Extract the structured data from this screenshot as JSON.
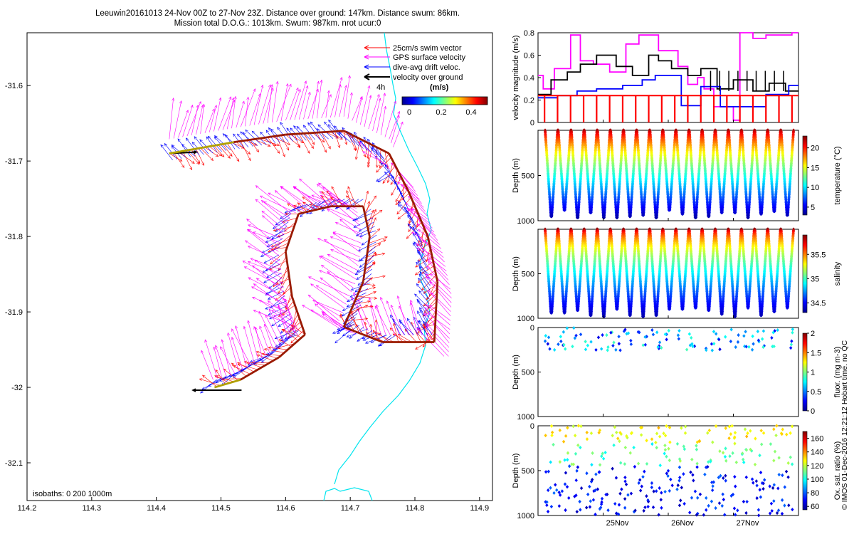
{
  "title": {
    "line1": "Leeuwin20161013 24-Nov 00Z to 27-Nov 23Z. Distance over ground: 147km. Distance swum: 86km.",
    "line2": "Mission total D.O.G.: 1013km. Swum: 987km. nrot ucur:0"
  },
  "side_note": "© IMOS 01-Dec-2016 12:21:12 Hobart time. no QC",
  "colors": {
    "swim": "#ff0000",
    "gps": "#ff00ff",
    "drift": "#0000ff",
    "vog": "#000000",
    "coast": "#00e5ee"
  },
  "chart_data": [
    {
      "type": "vector-map",
      "xlim": [
        114.2,
        114.92
      ],
      "ylim": [
        -32.15,
        -31.53
      ],
      "xticks": [
        "114.2",
        "114.3",
        "114.4",
        "114.5",
        "114.6",
        "114.7",
        "114.8",
        "114.9"
      ],
      "yticks": [
        "-31.6",
        "-31.7",
        "-31.8",
        "-31.9",
        "-32",
        "-32.1"
      ],
      "legend": [
        "25cm/s swim vector",
        "GPS surface velocity",
        "dive-avg drift veloc.",
        "velocity over ground"
      ],
      "legend_extra": "4h",
      "colorbar": {
        "label": "(m/s)",
        "ticks": [
          "0",
          "0.2",
          "0.4"
        ],
        "range": [
          0,
          0.5
        ]
      },
      "isobaths_label": "isobaths: 0   200   1000m",
      "track": [
        [
          114.42,
          -31.69
        ],
        [
          114.52,
          -31.675
        ],
        [
          114.6,
          -31.665
        ],
        [
          114.69,
          -31.66
        ],
        [
          114.76,
          -31.69
        ],
        [
          114.79,
          -31.74
        ],
        [
          114.82,
          -31.8
        ],
        [
          114.835,
          -31.86
        ],
        [
          114.83,
          -31.94
        ],
        [
          114.75,
          -31.94
        ],
        [
          114.69,
          -31.92
        ],
        [
          114.72,
          -31.86
        ],
        [
          114.73,
          -31.8
        ],
        [
          114.72,
          -31.76
        ],
        [
          114.67,
          -31.76
        ],
        [
          114.62,
          -31.77
        ],
        [
          114.6,
          -31.82
        ],
        [
          114.61,
          -31.88
        ],
        [
          114.63,
          -31.93
        ],
        [
          114.59,
          -31.96
        ],
        [
          114.53,
          -31.99
        ],
        [
          114.49,
          -32.0
        ]
      ]
    },
    {
      "type": "line",
      "ylabel": "velocity magnitude (m/s)",
      "ylim": [
        0,
        0.8
      ],
      "yticks": [
        "0",
        "0.2",
        "0.4",
        "0.6",
        "0.8"
      ],
      "x_range_days": [
        24,
        28
      ],
      "series": [
        {
          "color": "#ff00ff",
          "x": [
            24,
            24.08,
            24.08,
            24.25,
            24.25,
            24.5,
            24.5,
            24.65,
            24.65,
            24.85,
            24.85,
            25.1,
            25.1,
            25.35,
            25.35,
            25.55,
            25.55,
            25.85,
            25.85,
            26.15,
            26.15,
            26.3,
            26.3,
            26.45,
            26.45,
            26.55,
            26.55,
            26.7,
            26.7,
            27,
            27,
            27.1,
            27.1,
            27.3,
            27.3,
            27.5,
            27.5,
            27.9,
            27.9,
            28
          ],
          "y": [
            0.42,
            0.42,
            0.3,
            0.3,
            0.48,
            0.48,
            0.78,
            0.78,
            0.55,
            0.55,
            0.52,
            0.52,
            0.45,
            0.45,
            0.7,
            0.7,
            0.78,
            0.78,
            0.64,
            0.64,
            0.5,
            0.5,
            0.34,
            0.34,
            0.4,
            0.4,
            0.3,
            0.3,
            0.14,
            0.14,
            0.02,
            0.02,
            0.8,
            0.8,
            0.75,
            0.75,
            0.78,
            0.78,
            0.8,
            0.8
          ]
        },
        {
          "color": "#000000",
          "x": [
            24,
            24.2,
            24.2,
            24.45,
            24.45,
            24.65,
            24.65,
            24.9,
            24.9,
            25.2,
            25.2,
            25.45,
            25.45,
            25.7,
            25.7,
            25.85,
            25.85,
            26.05,
            26.05,
            26.3,
            26.3,
            26.5,
            26.5,
            26.75,
            26.75,
            27.0,
            27.0,
            27.3,
            27.3,
            27.55,
            27.55,
            27.8,
            27.8,
            28
          ],
          "y": [
            0.25,
            0.25,
            0.38,
            0.38,
            0.45,
            0.45,
            0.52,
            0.52,
            0.6,
            0.6,
            0.5,
            0.5,
            0.42,
            0.42,
            0.6,
            0.6,
            0.55,
            0.55,
            0.48,
            0.48,
            0.42,
            0.42,
            0.48,
            0.48,
            0.3,
            0.3,
            0.38,
            0.38,
            0.28,
            0.28,
            0.35,
            0.35,
            0.28,
            0.28
          ]
        },
        {
          "color": "#0000ff",
          "x": [
            24,
            24.3,
            24.3,
            24.6,
            24.6,
            24.9,
            24.9,
            25.3,
            25.3,
            25.6,
            25.6,
            25.8,
            25.8,
            26.2,
            26.2,
            26.5,
            26.5,
            26.8,
            26.8,
            27.2,
            27.2,
            27.5,
            27.5,
            27.85,
            27.85,
            28
          ],
          "y": [
            0.22,
            0.22,
            0.24,
            0.24,
            0.28,
            0.28,
            0.3,
            0.3,
            0.33,
            0.33,
            0.38,
            0.38,
            0.42,
            0.42,
            0.15,
            0.15,
            0.32,
            0.32,
            0.14,
            0.14,
            0.14,
            0.14,
            0.25,
            0.25,
            0.33,
            0.33
          ]
        },
        {
          "color": "#ff0000",
          "x": [
            24,
            28
          ],
          "y": [
            0.24,
            0.24
          ]
        }
      ]
    },
    {
      "type": "scatter",
      "ylabel": "Depth (m)",
      "cblabel": "temperature (°C)",
      "cbticks": [
        "5",
        "10",
        "15",
        "20"
      ],
      "cbrange": [
        3,
        23
      ],
      "yticks": [
        "500",
        "1000"
      ],
      "ylim": [
        1000,
        0
      ],
      "cmap": "jet"
    },
    {
      "type": "scatter",
      "ylabel": "Depth (m)",
      "cblabel": "salinity",
      "cbticks": [
        "34.5",
        "35",
        "35.5"
      ],
      "cbrange": [
        34.3,
        35.9
      ],
      "yticks": [
        "500",
        "1000"
      ],
      "ylim": [
        1000,
        0
      ],
      "cmap": "jet"
    },
    {
      "type": "scatter",
      "ylabel": "Depth (m)",
      "cblabel": "fluor. (mg m-3)",
      "cbticks": [
        "0",
        "0.5",
        "1",
        "1.5",
        "2"
      ],
      "cbrange": [
        0,
        2
      ],
      "yticks": [
        "0",
        "500",
        "1000"
      ],
      "ylim": [
        1000,
        0
      ],
      "cmap": "jet"
    },
    {
      "type": "scatter",
      "ylabel": "Depth (m)",
      "cblabel": "Ox. sat. ratio (%)",
      "cbticks": [
        "60",
        "80",
        "100",
        "120",
        "140",
        "160"
      ],
      "cbrange": [
        55,
        170
      ],
      "yticks": [
        "0",
        "500",
        "1000"
      ],
      "ylim": [
        1000,
        0
      ],
      "cmap": "jet",
      "xticks": [
        "25Nov",
        "26Nov",
        "27Nov"
      ]
    }
  ]
}
